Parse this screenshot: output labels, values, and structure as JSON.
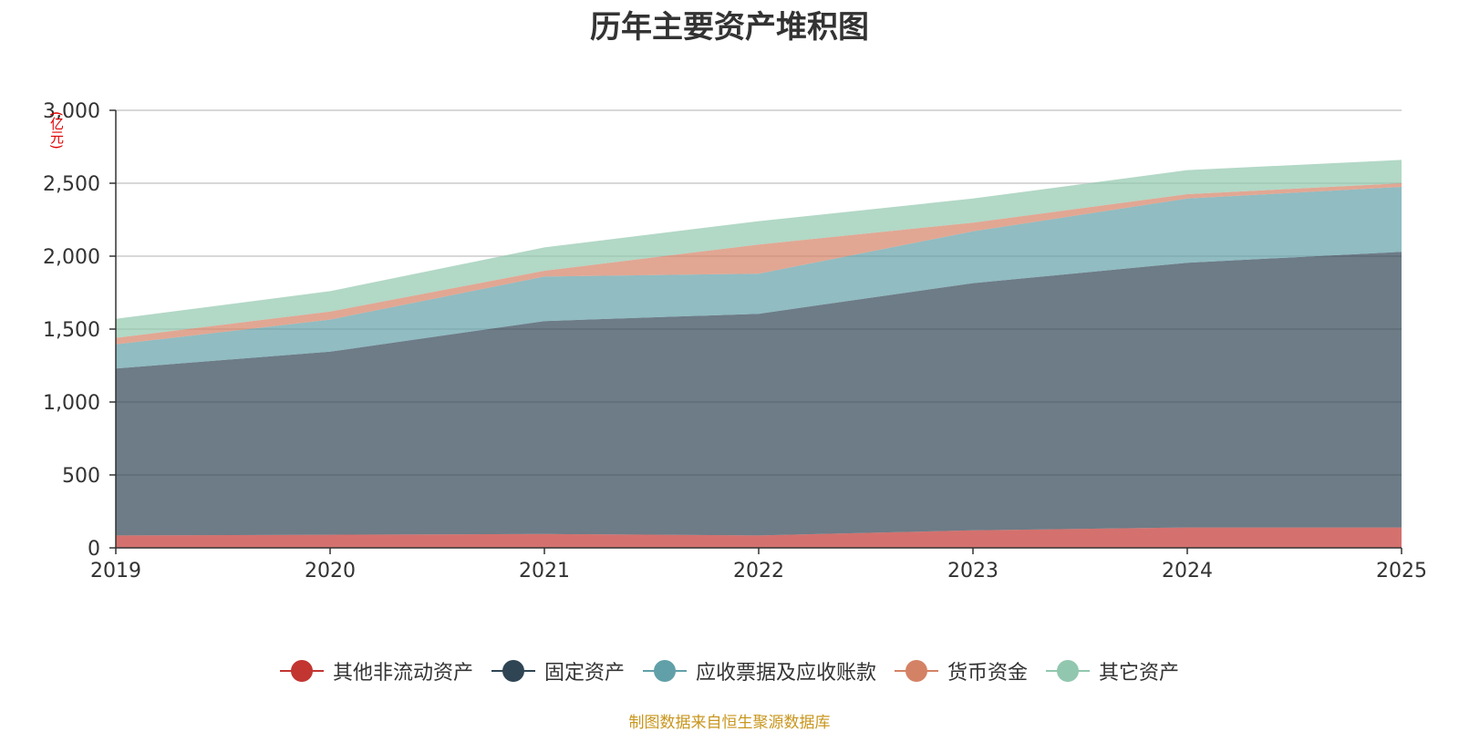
{
  "title": "历年主要资产堆积图",
  "unit_label": "(亿元)",
  "source_text": "制图数据来自恒生聚源数据库",
  "chart_data": {
    "type": "area",
    "stacked": true,
    "title": "历年主要资产堆积图",
    "ylabel": "(亿元)",
    "xlabel": "",
    "ylim": [
      0,
      3000
    ],
    "yticks": [
      0,
      500,
      1000,
      1500,
      2000,
      2500,
      3000
    ],
    "ytick_labels": [
      "0",
      "500",
      "1,000",
      "1,500",
      "2,000",
      "2,500",
      "3,000"
    ],
    "categories": [
      "2019",
      "2020",
      "2021",
      "2022",
      "2023",
      "2024",
      "2025"
    ],
    "grid": true,
    "legend_position": "bottom",
    "series": [
      {
        "name": "其他非流动资产",
        "color": "#c23531",
        "values": [
          85,
          90,
          95,
          85,
          120,
          140,
          140
        ]
      },
      {
        "name": "固定资产",
        "color": "#2f4554",
        "values": [
          1145,
          1255,
          1460,
          1520,
          1695,
          1815,
          1890
        ]
      },
      {
        "name": "应收票据及应收账款",
        "color": "#61a0a8",
        "values": [
          165,
          220,
          305,
          275,
          355,
          440,
          445
        ]
      },
      {
        "name": "货币资金",
        "color": "#d48265",
        "values": [
          45,
          55,
          40,
          200,
          60,
          30,
          25
        ]
      },
      {
        "name": "其它资产",
        "color": "#91c7ae",
        "values": [
          130,
          140,
          160,
          160,
          165,
          165,
          160
        ]
      }
    ]
  }
}
